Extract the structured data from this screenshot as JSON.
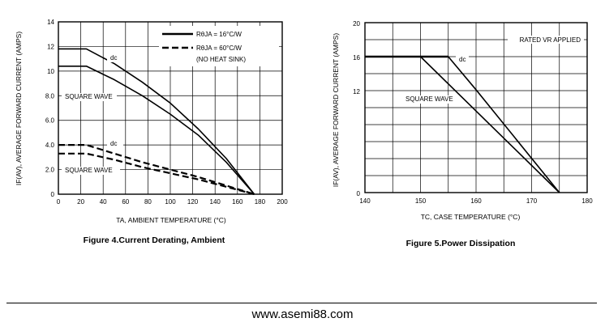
{
  "chart_data": [
    {
      "type": "line",
      "xlabel": "TA, AMBIENT TEMPERATURE (°C)",
      "ylabel": "IF(AV), AVERAGE FORWARD CURRENT (AMPS)",
      "xlim": [
        0,
        200
      ],
      "ylim": [
        0,
        14
      ],
      "x_ticks": [
        "0",
        "20",
        "40",
        "60",
        "80",
        "100",
        "120",
        "140",
        "160",
        "180",
        "200"
      ],
      "y_ticks": [
        "0",
        "2.0",
        "4.0",
        "6.0",
        "8.0",
        "10",
        "12",
        "14"
      ],
      "grid": true,
      "legend": {
        "position": "top-right",
        "entries": [
          {
            "text": "RθJA = 16°C/W",
            "style": "solid"
          },
          {
            "text": "RθJA = 60°C/W",
            "style": "dashed"
          },
          {
            "text": "(NO HEAT SINK)",
            "style": "none"
          }
        ]
      },
      "series": [
        {
          "style": "solid",
          "points": [
            [
              0,
              11.8
            ],
            [
              25,
              11.8
            ],
            [
              50,
              10.6
            ],
            [
              75,
              9.1
            ],
            [
              100,
              7.4
            ],
            [
              125,
              5.3
            ],
            [
              150,
              2.9
            ],
            [
              175,
              0
            ]
          ]
        },
        {
          "style": "solid",
          "points": [
            [
              0,
              10.4
            ],
            [
              25,
              10.4
            ],
            [
              50,
              9.3
            ],
            [
              75,
              8.0
            ],
            [
              100,
              6.5
            ],
            [
              125,
              4.8
            ],
            [
              150,
              2.6
            ],
            [
              175,
              0
            ]
          ]
        },
        {
          "style": "dashed",
          "points": [
            [
              0,
              4.0
            ],
            [
              25,
              4.0
            ],
            [
              50,
              3.3
            ],
            [
              75,
              2.6
            ],
            [
              100,
              2.0
            ],
            [
              125,
              1.4
            ],
            [
              150,
              0.7
            ],
            [
              175,
              0
            ]
          ]
        },
        {
          "style": "dashed",
          "points": [
            [
              0,
              3.3
            ],
            [
              25,
              3.3
            ],
            [
              50,
              2.8
            ],
            [
              75,
              2.2
            ],
            [
              100,
              1.7
            ],
            [
              125,
              1.2
            ],
            [
              150,
              0.6
            ],
            [
              175,
              0
            ]
          ]
        }
      ],
      "annotations": [
        "dc",
        "SQUARE WAVE",
        "dc",
        "SQUARE WAVE"
      ],
      "caption": "Figure 4.Current  Derating, Ambient"
    },
    {
      "type": "line",
      "xlabel": "TC, CASE TEMPERATURE (°C)",
      "ylabel": "IF(AV), AVERAGE FORWARD CURRENT (AMPS)",
      "xlim": [
        140,
        180
      ],
      "ylim": [
        0,
        20
      ],
      "x_ticks": [
        "140",
        "150",
        "160",
        "170",
        "180"
      ],
      "y_ticks": [
        "20",
        "16",
        "12",
        "0"
      ],
      "grid": true,
      "series": [
        {
          "style": "solid",
          "points": [
            [
              140,
              16
            ],
            [
              155,
              16
            ],
            [
              160,
              12.1
            ],
            [
              175,
              0
            ]
          ]
        },
        {
          "style": "solid",
          "points": [
            [
              140,
              16
            ],
            [
              150,
              16
            ],
            [
              175,
              0
            ]
          ]
        }
      ],
      "annotations": [
        "RATED VR APPLIED",
        "dc",
        "SQUARE WAVE"
      ],
      "caption": "Figure 5.Power  Dissipation"
    }
  ],
  "footer": {
    "url": "www.asemi88.com"
  }
}
